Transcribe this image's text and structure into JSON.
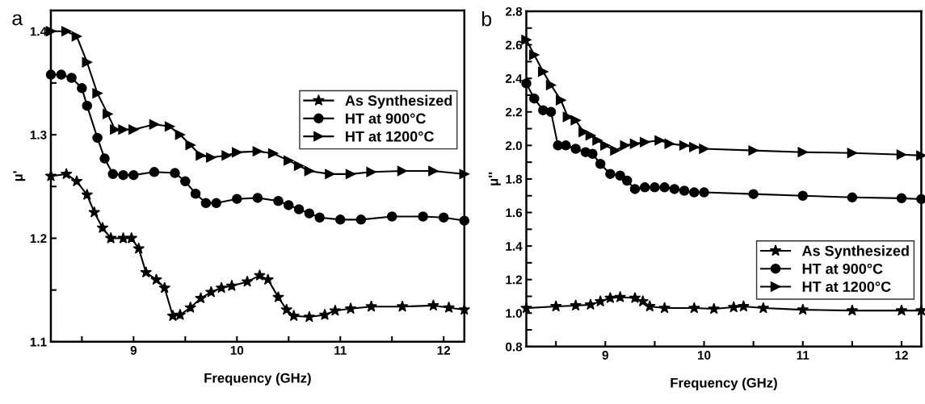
{
  "chart_data": [
    {
      "type": "line",
      "title": "a",
      "xlabel": "Frequency (GHz)",
      "ylabel": "μ'",
      "xlim": [
        8.2,
        12.2
      ],
      "ylim": [
        1.1,
        1.42
      ],
      "xticks": [
        {
          "value": 8.5,
          "label": null
        },
        9,
        {
          "value": 9.5,
          "label": null
        },
        10,
        {
          "value": 10.5,
          "label": null
        },
        11,
        {
          "value": 11.5,
          "label": null
        },
        12
      ],
      "yticks": [
        1.1,
        {
          "value": 1.15,
          "label": null
        },
        1.2,
        {
          "value": 1.25,
          "label": null
        },
        1.3,
        {
          "value": 1.35,
          "label": null
        },
        1.4
      ],
      "legend": "top right",
      "grid": false,
      "series": [
        {
          "name": "As Synthesized",
          "color": "#000000",
          "marker": "star",
          "x": [
            8.2,
            8.35,
            8.45,
            8.55,
            8.62,
            8.7,
            8.78,
            8.9,
            8.98,
            9.05,
            9.12,
            9.22,
            9.3,
            9.38,
            9.45,
            9.55,
            9.65,
            9.75,
            9.85,
            9.95,
            10.1,
            10.22,
            10.3,
            10.4,
            10.48,
            10.55,
            10.7,
            10.85,
            10.95,
            11.1,
            11.3,
            11.6,
            11.9,
            12.05,
            12.2
          ],
          "values": [
            1.26,
            1.262,
            1.255,
            1.242,
            1.225,
            1.21,
            1.2,
            1.2,
            1.2,
            1.19,
            1.167,
            1.16,
            1.152,
            1.125,
            1.126,
            1.133,
            1.142,
            1.148,
            1.152,
            1.154,
            1.158,
            1.164,
            1.16,
            1.143,
            1.131,
            1.125,
            1.124,
            1.126,
            1.13,
            1.132,
            1.134,
            1.134,
            1.135,
            1.133,
            1.131
          ]
        },
        {
          "name": "HT at 900°C",
          "color": "#000000",
          "marker": "circle",
          "x": [
            8.2,
            8.3,
            8.4,
            8.5,
            8.55,
            8.65,
            8.72,
            8.8,
            8.9,
            9.0,
            9.2,
            9.4,
            9.5,
            9.6,
            9.7,
            9.8,
            10.0,
            10.2,
            10.4,
            10.5,
            10.6,
            10.7,
            10.8,
            11.0,
            11.2,
            11.5,
            11.8,
            12.0,
            12.2
          ],
          "values": [
            1.358,
            1.358,
            1.355,
            1.345,
            1.328,
            1.297,
            1.277,
            1.262,
            1.261,
            1.261,
            1.264,
            1.263,
            1.255,
            1.243,
            1.234,
            1.234,
            1.238,
            1.239,
            1.236,
            1.232,
            1.228,
            1.224,
            1.22,
            1.218,
            1.218,
            1.221,
            1.221,
            1.22,
            1.217
          ]
        },
        {
          "name": "HT at 1200°C",
          "color": "#000000",
          "marker": "triangle",
          "x": [
            8.2,
            8.35,
            8.45,
            8.55,
            8.65,
            8.75,
            8.82,
            8.9,
            9.0,
            9.2,
            9.35,
            9.45,
            9.55,
            9.65,
            9.75,
            9.9,
            10.0,
            10.2,
            10.35,
            10.5,
            10.6,
            10.7,
            10.9,
            11.1,
            11.3,
            11.6,
            11.9,
            12.2
          ],
          "values": [
            1.4,
            1.4,
            1.395,
            1.37,
            1.34,
            1.32,
            1.305,
            1.305,
            1.305,
            1.31,
            1.308,
            1.3,
            1.29,
            1.28,
            1.278,
            1.28,
            1.283,
            1.284,
            1.282,
            1.275,
            1.27,
            1.265,
            1.262,
            1.262,
            1.264,
            1.265,
            1.265,
            1.262
          ]
        }
      ]
    },
    {
      "type": "line",
      "title": "b",
      "xlabel": "Frequency (GHz)",
      "ylabel": "μ''",
      "xlim": [
        8.2,
        12.2
      ],
      "ylim": [
        0.8,
        2.8
      ],
      "xticks": [
        {
          "value": 8.5,
          "label": null
        },
        9,
        {
          "value": 9.5,
          "label": null
        },
        10,
        {
          "value": 10.5,
          "label": null
        },
        11,
        {
          "value": 11.5,
          "label": null
        },
        12
      ],
      "yticks": [
        0.8,
        {
          "value": 0.9,
          "label": null
        },
        {
          "value": 1,
          "label": "1.0"
        },
        {
          "value": 1.1,
          "label": null
        },
        1.2,
        {
          "value": 1.3,
          "label": null
        },
        1.4,
        {
          "value": 1.5,
          "label": null
        },
        1.6,
        {
          "value": 1.7,
          "label": null
        },
        1.8,
        {
          "value": 1.9,
          "label": null
        },
        {
          "value": 2,
          "label": "2.0"
        },
        {
          "value": 2.1,
          "label": null
        },
        2.2,
        {
          "value": 2.3,
          "label": null
        },
        2.4,
        {
          "value": 2.5,
          "label": null
        },
        2.6,
        {
          "value": 2.7,
          "label": null
        },
        2.8
      ],
      "legend": "bottom right",
      "grid": false,
      "series": [
        {
          "name": "As Synthesized",
          "color": "#000000",
          "marker": "star",
          "x": [
            8.2,
            8.5,
            8.7,
            8.85,
            8.95,
            9.05,
            9.15,
            9.3,
            9.38,
            9.45,
            9.6,
            9.9,
            10.1,
            10.3,
            10.4,
            10.6,
            11.0,
            11.5,
            12.0,
            12.2
          ],
          "values": [
            1.03,
            1.04,
            1.045,
            1.05,
            1.07,
            1.09,
            1.095,
            1.09,
            1.07,
            1.04,
            1.03,
            1.03,
            1.025,
            1.035,
            1.04,
            1.03,
            1.02,
            1.015,
            1.015,
            1.015
          ]
        },
        {
          "name": "HT at 900°C",
          "color": "#000000",
          "marker": "circle",
          "x": [
            8.2,
            8.28,
            8.37,
            8.45,
            8.52,
            8.6,
            8.7,
            8.8,
            8.87,
            8.95,
            9.05,
            9.15,
            9.22,
            9.3,
            9.4,
            9.5,
            9.6,
            9.7,
            9.8,
            9.9,
            10.0,
            10.5,
            11.0,
            11.5,
            12.0,
            12.2
          ],
          "values": [
            2.37,
            2.28,
            2.21,
            2.2,
            2.0,
            2.0,
            1.98,
            1.96,
            1.95,
            1.89,
            1.83,
            1.82,
            1.79,
            1.74,
            1.75,
            1.75,
            1.75,
            1.74,
            1.73,
            1.72,
            1.72,
            1.71,
            1.7,
            1.69,
            1.685,
            1.68
          ]
        },
        {
          "name": "HT at 1200°C",
          "color": "#000000",
          "marker": "triangle",
          "x": [
            8.2,
            8.28,
            8.37,
            8.45,
            8.55,
            8.62,
            8.7,
            8.78,
            8.85,
            8.92,
            9.0,
            9.1,
            9.2,
            9.3,
            9.4,
            9.55,
            9.65,
            9.8,
            9.9,
            10.0,
            10.5,
            11.0,
            11.5,
            12.0,
            12.2
          ],
          "values": [
            2.63,
            2.54,
            2.44,
            2.36,
            2.27,
            2.17,
            2.15,
            2.08,
            2.06,
            2.03,
            2.0,
            1.97,
            2.0,
            2.01,
            2.02,
            2.03,
            2.01,
            2.0,
            1.99,
            1.98,
            1.97,
            1.96,
            1.955,
            1.945,
            1.94
          ]
        }
      ]
    }
  ]
}
